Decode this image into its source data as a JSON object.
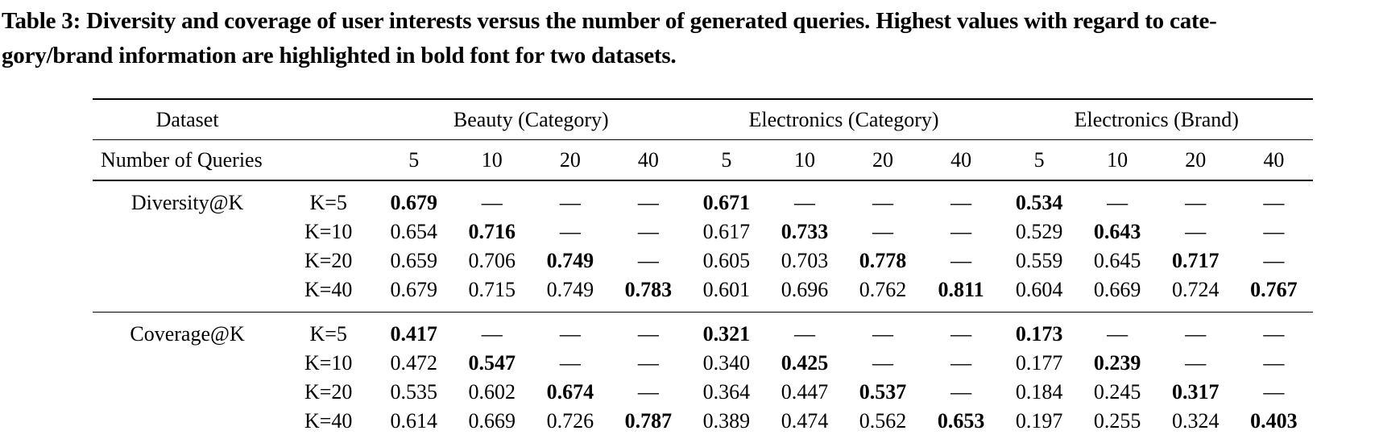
{
  "caption": {
    "line1": "Table 3: Diversity and coverage of user interests versus the number of generated queries. Highest values with regard to cate-",
    "line2": "gory/brand information are highlighted in bold font for two datasets."
  },
  "table": {
    "header": {
      "dataset_label": "Dataset",
      "groups": [
        {
          "label": "Beauty (Category)"
        },
        {
          "label": "Electronics (Category)"
        },
        {
          "label": "Electronics (Brand)"
        }
      ],
      "queries_label": "Number of Queries",
      "query_counts": [
        "5",
        "10",
        "20",
        "40",
        "5",
        "10",
        "20",
        "40",
        "5",
        "10",
        "20",
        "40"
      ]
    },
    "blocks": [
      {
        "metric": "Diversity@K",
        "rows": [
          {
            "k": "K=5",
            "cells": [
              {
                "t": "0.679",
                "b": 1
              },
              {
                "t": "—",
                "b": 0
              },
              {
                "t": "—",
                "b": 0
              },
              {
                "t": "—",
                "b": 0
              },
              {
                "t": "0.671",
                "b": 1
              },
              {
                "t": "—",
                "b": 0
              },
              {
                "t": "—",
                "b": 0
              },
              {
                "t": "—",
                "b": 0
              },
              {
                "t": "0.534",
                "b": 1
              },
              {
                "t": "—",
                "b": 0
              },
              {
                "t": "—",
                "b": 0
              },
              {
                "t": "—",
                "b": 0
              }
            ]
          },
          {
            "k": "K=10",
            "cells": [
              {
                "t": "0.654",
                "b": 0
              },
              {
                "t": "0.716",
                "b": 1
              },
              {
                "t": "—",
                "b": 0
              },
              {
                "t": "—",
                "b": 0
              },
              {
                "t": "0.617",
                "b": 0
              },
              {
                "t": "0.733",
                "b": 1
              },
              {
                "t": "—",
                "b": 0
              },
              {
                "t": "—",
                "b": 0
              },
              {
                "t": "0.529",
                "b": 0
              },
              {
                "t": "0.643",
                "b": 1
              },
              {
                "t": "—",
                "b": 0
              },
              {
                "t": "—",
                "b": 0
              }
            ]
          },
          {
            "k": "K=20",
            "cells": [
              {
                "t": "0.659",
                "b": 0
              },
              {
                "t": "0.706",
                "b": 0
              },
              {
                "t": "0.749",
                "b": 1
              },
              {
                "t": "—",
                "b": 0
              },
              {
                "t": "0.605",
                "b": 0
              },
              {
                "t": "0.703",
                "b": 0
              },
              {
                "t": "0.778",
                "b": 1
              },
              {
                "t": "—",
                "b": 0
              },
              {
                "t": "0.559",
                "b": 0
              },
              {
                "t": "0.645",
                "b": 0
              },
              {
                "t": "0.717",
                "b": 1
              },
              {
                "t": "—",
                "b": 0
              }
            ]
          },
          {
            "k": "K=40",
            "cells": [
              {
                "t": "0.679",
                "b": 0
              },
              {
                "t": "0.715",
                "b": 0
              },
              {
                "t": "0.749",
                "b": 0
              },
              {
                "t": "0.783",
                "b": 1
              },
              {
                "t": "0.601",
                "b": 0
              },
              {
                "t": "0.696",
                "b": 0
              },
              {
                "t": "0.762",
                "b": 0
              },
              {
                "t": "0.811",
                "b": 1
              },
              {
                "t": "0.604",
                "b": 0
              },
              {
                "t": "0.669",
                "b": 0
              },
              {
                "t": "0.724",
                "b": 0
              },
              {
                "t": "0.767",
                "b": 1
              }
            ]
          }
        ]
      },
      {
        "metric": "Coverage@K",
        "rows": [
          {
            "k": "K=5",
            "cells": [
              {
                "t": "0.417",
                "b": 1
              },
              {
                "t": "—",
                "b": 0
              },
              {
                "t": "—",
                "b": 0
              },
              {
                "t": "—",
                "b": 0
              },
              {
                "t": "0.321",
                "b": 1
              },
              {
                "t": "—",
                "b": 0
              },
              {
                "t": "—",
                "b": 0
              },
              {
                "t": "—",
                "b": 0
              },
              {
                "t": "0.173",
                "b": 1
              },
              {
                "t": "—",
                "b": 0
              },
              {
                "t": "—",
                "b": 0
              },
              {
                "t": "—",
                "b": 0
              }
            ]
          },
          {
            "k": "K=10",
            "cells": [
              {
                "t": "0.472",
                "b": 0
              },
              {
                "t": "0.547",
                "b": 1
              },
              {
                "t": "—",
                "b": 0
              },
              {
                "t": "—",
                "b": 0
              },
              {
                "t": "0.340",
                "b": 0
              },
              {
                "t": "0.425",
                "b": 1
              },
              {
                "t": "—",
                "b": 0
              },
              {
                "t": "—",
                "b": 0
              },
              {
                "t": "0.177",
                "b": 0
              },
              {
                "t": "0.239",
                "b": 1
              },
              {
                "t": "—",
                "b": 0
              },
              {
                "t": "—",
                "b": 0
              }
            ]
          },
          {
            "k": "K=20",
            "cells": [
              {
                "t": "0.535",
                "b": 0
              },
              {
                "t": "0.602",
                "b": 0
              },
              {
                "t": "0.674",
                "b": 1
              },
              {
                "t": "—",
                "b": 0
              },
              {
                "t": "0.364",
                "b": 0
              },
              {
                "t": "0.447",
                "b": 0
              },
              {
                "t": "0.537",
                "b": 1
              },
              {
                "t": "—",
                "b": 0
              },
              {
                "t": "0.184",
                "b": 0
              },
              {
                "t": "0.245",
                "b": 0
              },
              {
                "t": "0.317",
                "b": 1
              },
              {
                "t": "—",
                "b": 0
              }
            ]
          },
          {
            "k": "K=40",
            "cells": [
              {
                "t": "0.614",
                "b": 0
              },
              {
                "t": "0.669",
                "b": 0
              },
              {
                "t": "0.726",
                "b": 0
              },
              {
                "t": "0.787",
                "b": 1
              },
              {
                "t": "0.389",
                "b": 0
              },
              {
                "t": "0.474",
                "b": 0
              },
              {
                "t": "0.562",
                "b": 0
              },
              {
                "t": "0.653",
                "b": 1
              },
              {
                "t": "0.197",
                "b": 0
              },
              {
                "t": "0.255",
                "b": 0
              },
              {
                "t": "0.324",
                "b": 0
              },
              {
                "t": "0.403",
                "b": 1
              }
            ]
          }
        ]
      }
    ]
  }
}
